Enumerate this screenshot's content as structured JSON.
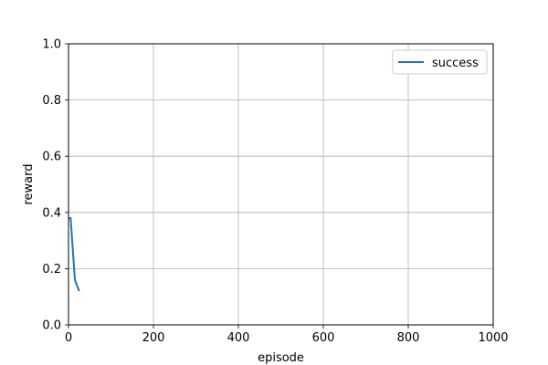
{
  "chart_data": {
    "type": "line",
    "title": "",
    "xlabel": "episode",
    "ylabel": "reward",
    "xlim": [
      0,
      1000
    ],
    "ylim": [
      0.0,
      1.0
    ],
    "xticks": [
      0,
      200,
      400,
      600,
      800,
      1000
    ],
    "xtick_labels": [
      "0",
      "200",
      "400",
      "600",
      "800",
      "1000"
    ],
    "yticks": [
      0.0,
      0.2,
      0.4,
      0.6,
      0.8,
      1.0
    ],
    "ytick_labels": [
      "0.0",
      "0.2",
      "0.4",
      "0.6",
      "0.8",
      "1.0"
    ],
    "grid": true,
    "legend_position": "top-right",
    "series": [
      {
        "name": "success",
        "color": "#1f77b4",
        "x": [
          0,
          5,
          15,
          25
        ],
        "y": [
          0.38,
          0.38,
          0.16,
          0.12
        ]
      }
    ]
  }
}
